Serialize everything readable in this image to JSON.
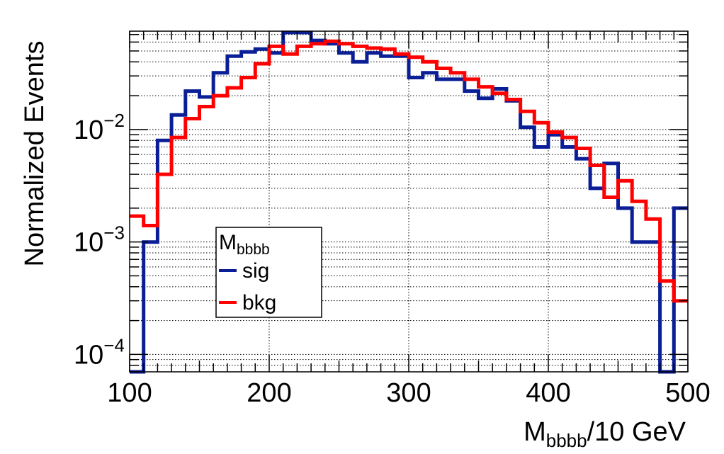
{
  "chart_data": {
    "type": "line",
    "subtype": "step-histogram",
    "log_y": true,
    "grid": true,
    "xlabel_main": "M",
    "xlabel_sub": "bbbb",
    "xlabel_rest": "/10 GeV",
    "ylabel": "Normalized Events",
    "xlim": [
      100,
      500
    ],
    "ylim": [
      7e-05,
      0.075
    ],
    "x_ticks": [
      "100",
      "200",
      "300",
      "400",
      "500"
    ],
    "y_ticks": [
      {
        "value": 0.0001,
        "base": "10",
        "exp": "−4"
      },
      {
        "value": 0.001,
        "base": "10",
        "exp": "−3"
      },
      {
        "value": 0.01,
        "base": "10",
        "exp": "−2"
      }
    ],
    "legend": {
      "title_main": "M",
      "title_sub": "bbbb",
      "position": "center-left"
    },
    "bin_edges": [
      100,
      110,
      120,
      130,
      140,
      150,
      160,
      170,
      180,
      190,
      200,
      210,
      220,
      230,
      240,
      250,
      260,
      270,
      280,
      290,
      300,
      310,
      320,
      330,
      340,
      350,
      360,
      370,
      380,
      390,
      400,
      410,
      420,
      430,
      440,
      450,
      460,
      470,
      480,
      490,
      500
    ],
    "series": [
      {
        "name": "sig",
        "color": "#0a1e96",
        "values": [
          5e-05,
          0.001,
          0.008,
          0.0135,
          0.022,
          0.0195,
          0.032,
          0.045,
          0.049,
          0.052,
          0.048,
          0.073,
          0.073,
          0.062,
          0.058,
          0.048,
          0.04,
          0.048,
          0.045,
          0.045,
          0.029,
          0.032,
          0.028,
          0.028,
          0.022,
          0.019,
          0.023,
          0.018,
          0.0105,
          0.007,
          0.009,
          0.007,
          0.0055,
          0.003,
          0.005,
          0.002,
          0.001,
          0.001,
          5e-05,
          0.002
        ]
      },
      {
        "name": "bkg",
        "color": "#ff0000",
        "values": [
          0.0017,
          0.0014,
          0.004,
          0.0085,
          0.0125,
          0.016,
          0.02,
          0.0235,
          0.029,
          0.0385,
          0.055,
          0.047,
          0.055,
          0.058,
          0.061,
          0.058,
          0.055,
          0.053,
          0.052,
          0.047,
          0.044,
          0.04,
          0.035,
          0.032,
          0.028,
          0.024,
          0.021,
          0.0185,
          0.0145,
          0.0115,
          0.0095,
          0.0085,
          0.0068,
          0.0048,
          0.0025,
          0.0035,
          0.0023,
          0.0016,
          0.00045,
          0.0003
        ]
      }
    ]
  }
}
